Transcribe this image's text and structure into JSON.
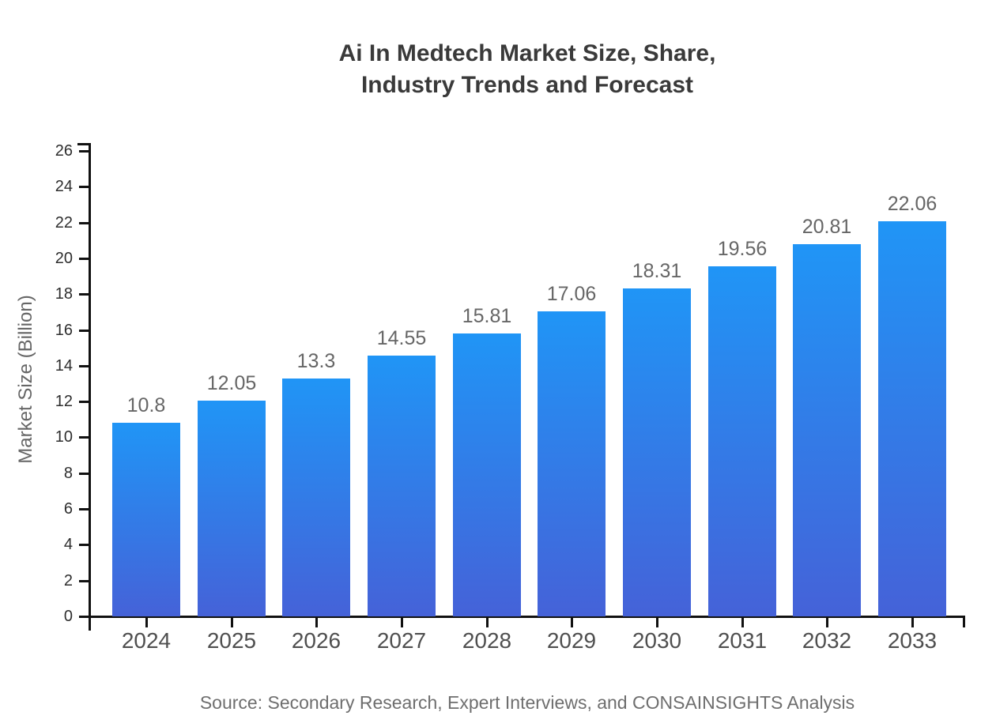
{
  "chart_data": {
    "type": "bar",
    "title": "Ai In Medtech Market Size, Share, Industry Trends and Forecast",
    "title_lines": [
      "Ai In Medtech Market Size, Share,",
      "Industry Trends and Forecast"
    ],
    "categories": [
      "2024",
      "2025",
      "2026",
      "2027",
      "2028",
      "2029",
      "2030",
      "2031",
      "2032",
      "2033"
    ],
    "values": [
      10.8,
      12.05,
      13.3,
      14.55,
      15.81,
      17.06,
      18.31,
      19.56,
      20.81,
      22.06
    ],
    "value_labels": [
      "10.8",
      "12.05",
      "13.3",
      "14.55",
      "15.81",
      "17.06",
      "18.31",
      "19.56",
      "20.81",
      "22.06"
    ],
    "xlabel": "",
    "ylabel": "Market Size (Billion)",
    "ylim": [
      0,
      26
    ],
    "ytick_step": 2,
    "ytick_labels": [
      "0",
      "2",
      "4",
      "6",
      "8",
      "10",
      "12",
      "14",
      "16",
      "18",
      "20",
      "22",
      "24",
      "26"
    ],
    "grid": false,
    "legend_position": "none",
    "bar_gradient_top": "#2095f6",
    "bar_gradient_bottom": "#4562d8"
  },
  "source_note": "Source: Secondary Research, Expert Interviews, and CONSAINSIGHTS Analysis",
  "colors": {
    "background": "#ffffff",
    "title": "#3a3a3a",
    "axis": "#111111",
    "ytick_label": "#2e2e2e",
    "xtick_label": "#4f4f4f",
    "value_label": "#666666",
    "ylabel": "#666666",
    "source": "#6e6e6e"
  }
}
